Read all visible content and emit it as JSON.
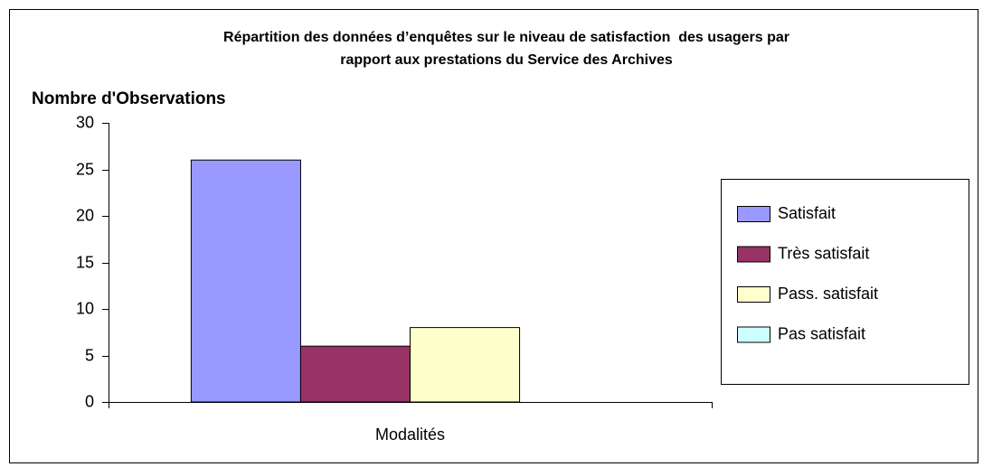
{
  "chart_data": {
    "type": "bar",
    "title": [
      "Répartition des données d’enquêtes sur le niveau de satisfaction  des usagers par",
      "rapport aux prestations du Service des Archives"
    ],
    "y_label": "Nombre d'Observations",
    "categories": [
      "Modalités"
    ],
    "series": [
      {
        "name": "Satisfait",
        "color": "#9999ff",
        "values": [
          26
        ]
      },
      {
        "name": "Très satisfait",
        "color": "#993366",
        "values": [
          6
        ]
      },
      {
        "name": "Pass. satisfait",
        "color": "#ffffcc",
        "values": [
          8
        ]
      },
      {
        "name": "Pas satisfait",
        "color": "#ccffff",
        "values": [
          0
        ]
      }
    ],
    "ylim": [
      0,
      30
    ],
    "yticks": [
      0,
      5,
      10,
      15,
      20,
      25,
      30
    ],
    "grid": false,
    "legend": "right"
  }
}
